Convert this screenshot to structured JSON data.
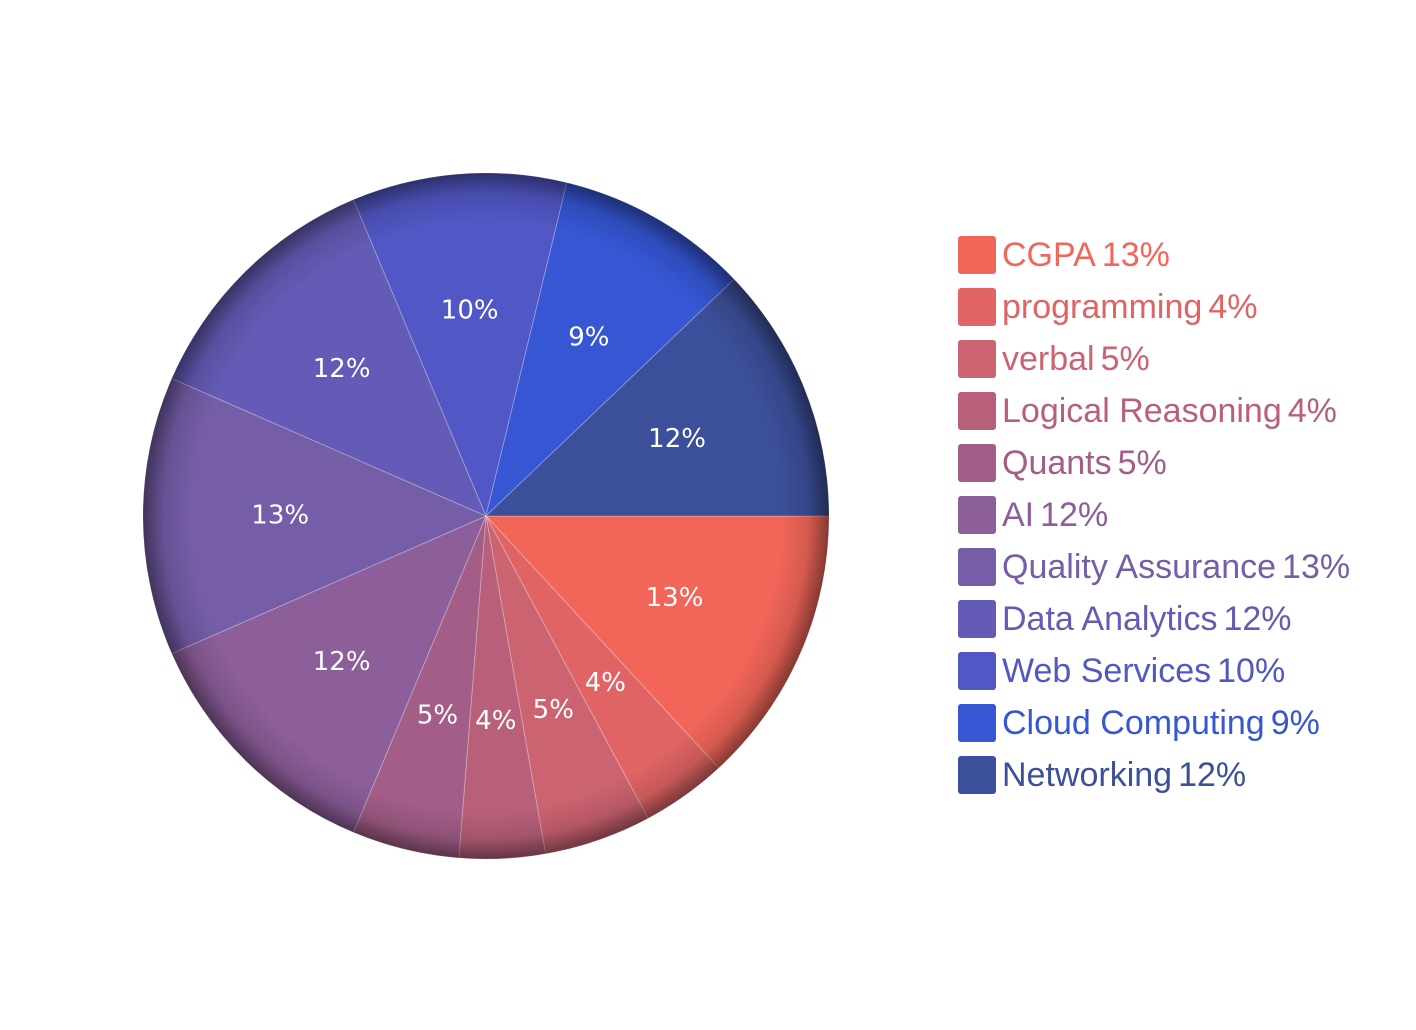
{
  "chart_data": {
    "type": "pie",
    "title": "",
    "legend_position": "right",
    "start_angle_deg": 0,
    "direction": "clockwise",
    "slices": [
      {
        "label": "CGPA",
        "value": 13,
        "display": "13%",
        "color": "#f26659"
      },
      {
        "label": "programming",
        "value": 4,
        "display": "4%",
        "color": "#e06464"
      },
      {
        "label": "verbal",
        "value": 5,
        "display": "5%",
        "color": "#cc6370"
      },
      {
        "label": "Logical Reasoning",
        "value": 4,
        "display": "4%",
        "color": "#b8607a"
      },
      {
        "label": "Quants",
        "value": 5,
        "display": "5%",
        "color": "#a35e88"
      },
      {
        "label": "AI",
        "value": 12,
        "display": "12%",
        "color": "#8c5e9a"
      },
      {
        "label": "Quality Assurance",
        "value": 13,
        "display": "13%",
        "color": "#755da8"
      },
      {
        "label": "Data Analytics",
        "value": 12,
        "display": "12%",
        "color": "#635bb5"
      },
      {
        "label": "Web Services",
        "value": 10,
        "display": "10%",
        "color": "#5157c4"
      },
      {
        "label": "Cloud Computing",
        "value": 9,
        "display": "9%",
        "color": "#3656d4"
      },
      {
        "label": "Networking",
        "value": 12,
        "display": "12%",
        "color": "#3c4f9a"
      }
    ]
  }
}
